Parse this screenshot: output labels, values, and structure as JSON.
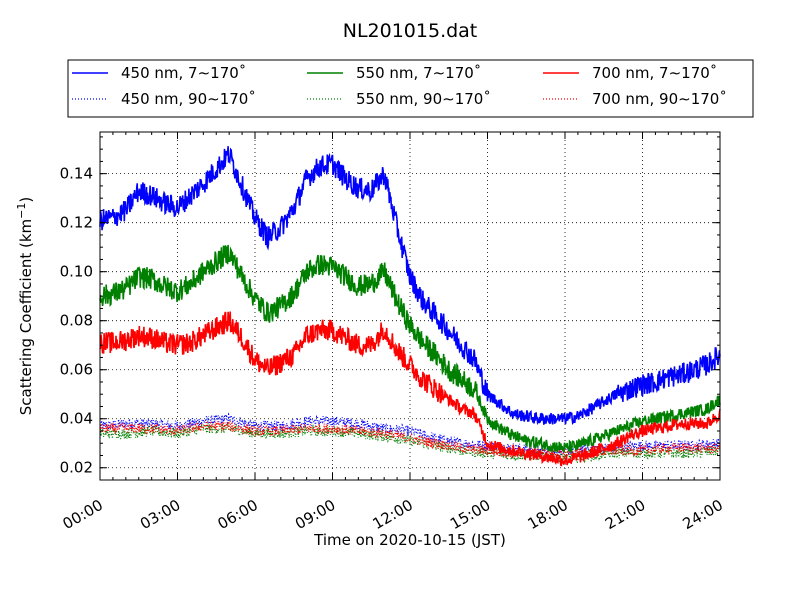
{
  "chart_data": {
    "type": "line",
    "title": "NL201015.dat",
    "xlabel": "Time on 2020-10-15 (JST)",
    "ylabel": "Scattering Coefficient (km",
    "ylabel_unit_exp": "−1",
    "ylabel_close": ")",
    "xlim": [
      0,
      24
    ],
    "ylim": [
      0.015,
      0.157
    ],
    "x_ticks": [
      0,
      3,
      6,
      9,
      12,
      15,
      18,
      21,
      24
    ],
    "x_tick_labels": [
      "00:00",
      "03:00",
      "06:00",
      "09:00",
      "12:00",
      "15:00",
      "18:00",
      "21:00",
      "24:00"
    ],
    "y_ticks": [
      0.02,
      0.04,
      0.06,
      0.08,
      0.1,
      0.12,
      0.14
    ],
    "y_tick_labels": [
      "0.02",
      "0.04",
      "0.06",
      "0.08",
      "0.10",
      "0.12",
      "0.14"
    ],
    "grid": true,
    "legend_position": "top",
    "series": [
      {
        "name": "450 nm, 7∼170˚",
        "color": "#0000ff",
        "style": "solid",
        "x": [
          0,
          0.5,
          1,
          1.5,
          2,
          2.5,
          3,
          3.5,
          4,
          4.5,
          5,
          5.5,
          6,
          6.5,
          7,
          7.5,
          8,
          8.5,
          9,
          9.5,
          10,
          10.5,
          11,
          11.5,
          12,
          12.5,
          13,
          13.5,
          14,
          14.5,
          15,
          15.5,
          16,
          16.5,
          17,
          17.5,
          18,
          18.5,
          19,
          19.5,
          20,
          20.5,
          21,
          21.5,
          22,
          22.5,
          23,
          23.5,
          24
        ],
        "y": [
          0.121,
          0.122,
          0.125,
          0.133,
          0.131,
          0.128,
          0.126,
          0.131,
          0.136,
          0.142,
          0.148,
          0.135,
          0.122,
          0.114,
          0.118,
          0.126,
          0.138,
          0.143,
          0.144,
          0.138,
          0.134,
          0.133,
          0.14,
          0.118,
          0.098,
          0.088,
          0.082,
          0.076,
          0.07,
          0.064,
          0.05,
          0.046,
          0.042,
          0.041,
          0.04,
          0.04,
          0.04,
          0.041,
          0.044,
          0.047,
          0.05,
          0.052,
          0.054,
          0.055,
          0.057,
          0.058,
          0.06,
          0.062,
          0.066
        ]
      },
      {
        "name": "450 nm, 90∼170˚",
        "color": "#0000ff",
        "style": "dotted",
        "x": [
          0,
          1,
          2,
          3,
          4,
          5,
          6,
          7,
          8,
          9,
          10,
          11,
          12,
          13,
          14,
          15,
          16,
          17,
          18,
          19,
          20,
          21,
          22,
          23,
          24
        ],
        "y": [
          0.037,
          0.038,
          0.038,
          0.037,
          0.039,
          0.04,
          0.037,
          0.037,
          0.039,
          0.039,
          0.038,
          0.036,
          0.035,
          0.032,
          0.03,
          0.029,
          0.028,
          0.027,
          0.027,
          0.028,
          0.028,
          0.029,
          0.029,
          0.029,
          0.03
        ]
      },
      {
        "name": "550 nm, 7∼170˚",
        "color": "#008000",
        "style": "solid",
        "x": [
          0,
          0.5,
          1,
          1.5,
          2,
          2.5,
          3,
          3.5,
          4,
          4.5,
          5,
          5.5,
          6,
          6.5,
          7,
          7.5,
          8,
          8.5,
          9,
          9.5,
          10,
          10.5,
          11,
          11.5,
          12,
          12.5,
          13,
          13.5,
          14,
          14.5,
          15,
          15.5,
          16,
          16.5,
          17,
          17.5,
          18,
          18.5,
          19,
          19.5,
          20,
          20.5,
          21,
          21.5,
          22,
          22.5,
          23,
          23.5,
          24
        ],
        "y": [
          0.09,
          0.091,
          0.093,
          0.098,
          0.097,
          0.094,
          0.092,
          0.095,
          0.1,
          0.104,
          0.108,
          0.098,
          0.089,
          0.083,
          0.086,
          0.091,
          0.1,
          0.103,
          0.102,
          0.098,
          0.094,
          0.095,
          0.1,
          0.088,
          0.078,
          0.071,
          0.066,
          0.06,
          0.056,
          0.052,
          0.04,
          0.036,
          0.033,
          0.031,
          0.03,
          0.029,
          0.028,
          0.029,
          0.031,
          0.033,
          0.035,
          0.037,
          0.039,
          0.04,
          0.041,
          0.042,
          0.043,
          0.044,
          0.048
        ]
      },
      {
        "name": "550 nm, 90∼170˚",
        "color": "#008000",
        "style": "dotted",
        "x": [
          0,
          1,
          2,
          3,
          4,
          5,
          6,
          7,
          8,
          9,
          10,
          11,
          12,
          13,
          14,
          15,
          16,
          17,
          18,
          19,
          20,
          21,
          22,
          23,
          24
        ],
        "y": [
          0.034,
          0.034,
          0.035,
          0.034,
          0.036,
          0.036,
          0.034,
          0.034,
          0.035,
          0.035,
          0.034,
          0.033,
          0.031,
          0.029,
          0.027,
          0.026,
          0.025,
          0.025,
          0.024,
          0.025,
          0.026,
          0.026,
          0.026,
          0.026,
          0.027
        ]
      },
      {
        "name": "700 nm, 7∼170˚",
        "color": "#ff0000",
        "style": "solid",
        "x": [
          0,
          0.5,
          1,
          1.5,
          2,
          2.5,
          3,
          3.5,
          4,
          4.5,
          5,
          5.5,
          6,
          6.5,
          7,
          7.5,
          8,
          8.5,
          9,
          9.5,
          10,
          10.5,
          11,
          11.5,
          12,
          12.5,
          13,
          13.5,
          14,
          14.5,
          15,
          15.5,
          16,
          16.5,
          17,
          17.5,
          18,
          18.5,
          19,
          19.5,
          20,
          20.5,
          21,
          21.5,
          22,
          22.5,
          23,
          23.5,
          24
        ],
        "y": [
          0.071,
          0.071,
          0.072,
          0.074,
          0.073,
          0.071,
          0.07,
          0.071,
          0.074,
          0.077,
          0.08,
          0.073,
          0.064,
          0.06,
          0.063,
          0.066,
          0.074,
          0.076,
          0.076,
          0.073,
          0.07,
          0.07,
          0.077,
          0.068,
          0.062,
          0.056,
          0.052,
          0.048,
          0.044,
          0.042,
          0.03,
          0.028,
          0.027,
          0.026,
          0.025,
          0.024,
          0.023,
          0.024,
          0.026,
          0.028,
          0.03,
          0.033,
          0.035,
          0.036,
          0.037,
          0.038,
          0.038,
          0.038,
          0.042
        ]
      },
      {
        "name": "700 nm, 90∼170˚",
        "color": "#ff0000",
        "style": "dotted",
        "x": [
          0,
          1,
          2,
          3,
          4,
          5,
          6,
          7,
          8,
          9,
          10,
          11,
          12,
          13,
          14,
          15,
          16,
          17,
          18,
          19,
          20,
          21,
          22,
          23,
          24
        ],
        "y": [
          0.036,
          0.036,
          0.036,
          0.035,
          0.037,
          0.037,
          0.035,
          0.035,
          0.036,
          0.036,
          0.035,
          0.034,
          0.032,
          0.03,
          0.028,
          0.027,
          0.026,
          0.026,
          0.026,
          0.026,
          0.027,
          0.027,
          0.028,
          0.028,
          0.028
        ]
      }
    ]
  }
}
